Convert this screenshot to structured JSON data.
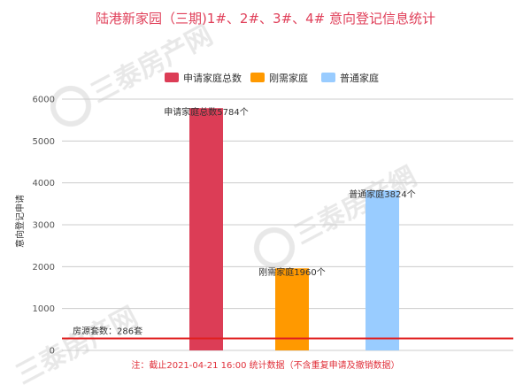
{
  "chart_data": {
    "type": "bar",
    "title": "陆港新家园（三期)1#、2#、3#、4# 意向登记信息统计",
    "ylabel": "意向登记申请",
    "ylim": [
      0,
      6000
    ],
    "yticks": [
      0,
      1000,
      2000,
      3000,
      4000,
      5000,
      6000
    ],
    "grid": true,
    "legend_position": "top",
    "categories": [
      "申请家庭总数",
      "刚需家庭",
      "普通家庭"
    ],
    "values": [
      5784,
      1960,
      3824
    ],
    "data_labels": [
      "申请家庭总数5784个",
      "刚需家庭1960个",
      "普通家庭3824个"
    ],
    "colors": [
      "#dc3d56",
      "#ff9900",
      "#99ccff"
    ],
    "reference_line": {
      "value": 286,
      "label": "房源套数：286套",
      "color": "#e02020"
    },
    "note": "注：截止2021-04-21 16:00 统计数据（不含重复申请及撤销数据）"
  },
  "watermark": {
    "text": "三泰房产网",
    "alt": "三泰房产網"
  }
}
